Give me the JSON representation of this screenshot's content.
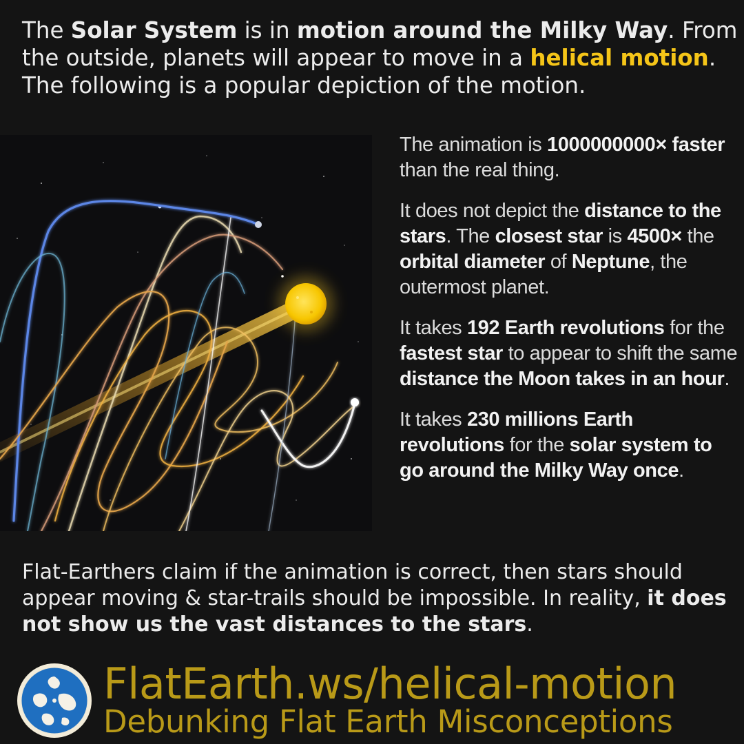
{
  "intro": {
    "p1": "The ",
    "b1": "Solar System",
    "p2": " is in ",
    "b2": "motion around the Milky Way",
    "p3": ". From the outside, planets will appear to move in a ",
    "h1": "helical motion",
    "p4": ". The following is a popular depiction of the motion."
  },
  "facts": [
    {
      "t1": "The animation is ",
      "b1": "1000000000× faster",
      "t2": " than the real thing."
    },
    {
      "t1": "It does not depict the ",
      "b1": "distance to the stars",
      "t2": ". The ",
      "b2": "closest star",
      "t3": " is ",
      "b3": "4500×",
      "t4": " the ",
      "b4": "orbital diameter",
      "t5": " of ",
      "b5": "Neptune",
      "t6": ", the outermost planet."
    },
    {
      "t1": "It takes ",
      "b1": "192 Earth revolutions",
      "t2": " for the ",
      "b2": "fastest star",
      "t3": " to appear to shift the same ",
      "b3": "distance the Moon takes in an hour",
      "t4": "."
    },
    {
      "t1": "It takes ",
      "b1": "230 millions Earth revolutions",
      "t2": " for the ",
      "b2": "solar system to go around the Milky Way once",
      "t3": "."
    }
  ],
  "claim": {
    "t1": "Flat-Earthers claim if the animation is correct, then stars should appear moving & star-trails should be impossible. In reality, ",
    "b1": "it does not show us the vast distances to the stars",
    "t2": "."
  },
  "footer": {
    "url": "FlatEarth.ws/helical-motion",
    "tagline": "Debunking Flat Earth Misconceptions"
  },
  "colors": {
    "highlight": "#f5c518",
    "footer_text": "#b99a18",
    "background": "#141414",
    "sun": "#f7c600"
  },
  "icons": [
    "globe-logo-icon",
    "sun-icon"
  ]
}
